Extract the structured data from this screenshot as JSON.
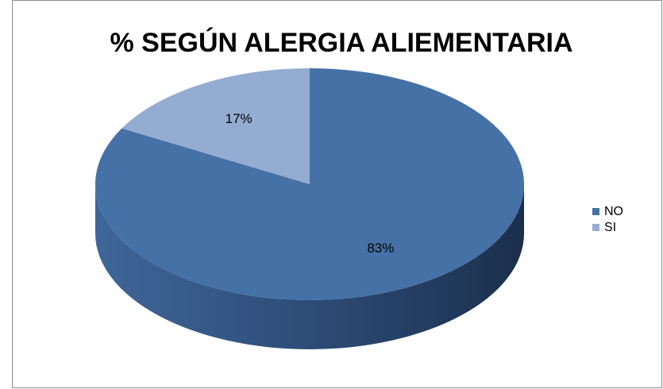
{
  "chart_data": {
    "type": "pie",
    "title": "% SEGÚN ALERGIA ALIEMENTARIA",
    "categories": [
      "NO",
      "SI"
    ],
    "values": [
      83,
      17
    ],
    "value_labels": [
      "83%",
      "17%"
    ],
    "colors": [
      "#4571a7",
      "#95acd2"
    ],
    "legend": "right"
  }
}
